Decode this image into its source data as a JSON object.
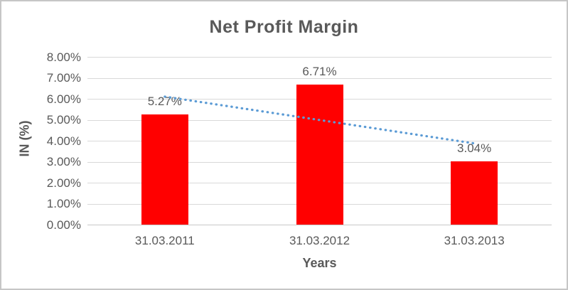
{
  "chart_data": {
    "type": "bar",
    "title": "Net Profit Margin",
    "xlabel": "Years",
    "ylabel": "IN (%)",
    "categories": [
      "31.03.2011",
      "31.03.2012",
      "31.03.2013"
    ],
    "series": [
      {
        "name": "Net Profit Margin",
        "values": [
          5.27,
          6.71,
          3.04
        ]
      }
    ],
    "data_labels": [
      "5.27%",
      "6.71%",
      "3.04%"
    ],
    "ylim": [
      0,
      8
    ],
    "ytick_step": 1,
    "ytick_labels": [
      "0.00%",
      "1.00%",
      "2.00%",
      "3.00%",
      "4.00%",
      "5.00%",
      "6.00%",
      "7.00%",
      "8.00%"
    ],
    "grid": true,
    "legend": "none",
    "trendline": {
      "type": "linear",
      "style": "dotted",
      "start_value": 6.12,
      "end_value": 3.89,
      "color": "#5B9BD5"
    },
    "colors": {
      "bar": "#FF0000",
      "text": "#595959",
      "gridline": "#D9D9D9",
      "axisline": "#C9C9C9",
      "frame_border": "#C6C6C6",
      "background": "#FFFFFF"
    }
  }
}
